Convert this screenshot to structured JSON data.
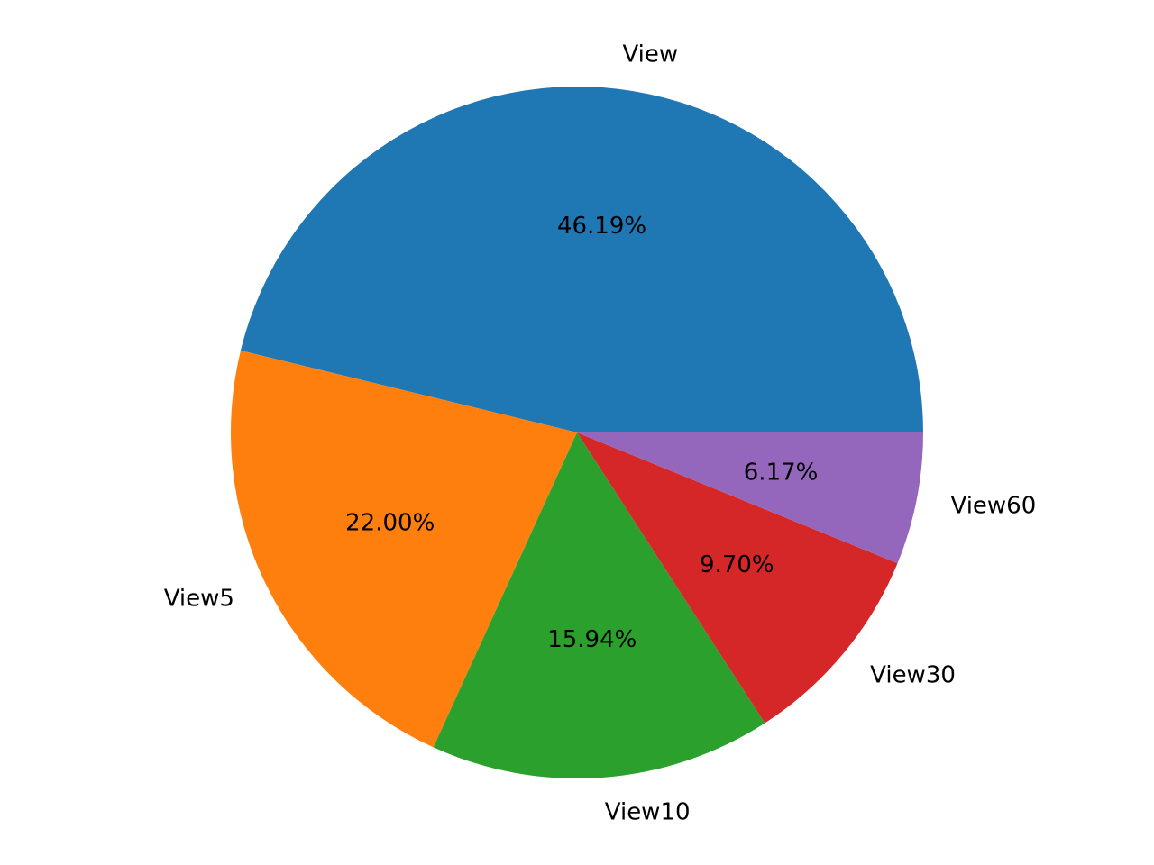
{
  "chart_data": {
    "type": "pie",
    "labels": [
      "View",
      "View5",
      "View10",
      "View30",
      "View60"
    ],
    "values": [
      46.19,
      22.0,
      15.94,
      9.7,
      6.17
    ],
    "percent_labels": [
      "46.19%",
      "22.00%",
      "15.94%",
      "9.70%",
      "6.17%"
    ],
    "colors": [
      "#1f77b4",
      "#ff7f0e",
      "#2ca02c",
      "#d62728",
      "#9467bd"
    ],
    "start_angle_deg": 0,
    "direction": "counterclockwise",
    "legend": "none"
  }
}
